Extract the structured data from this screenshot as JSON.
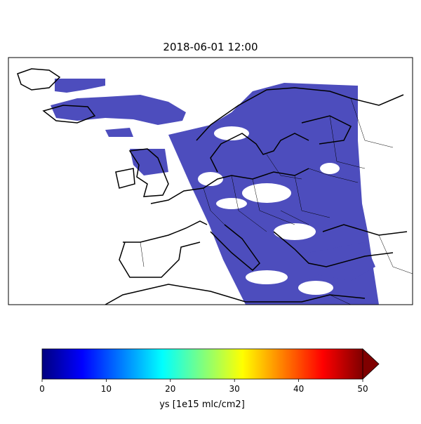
{
  "title": "2018-06-01 12:00",
  "colorbar": {
    "label": "ys [1e15 mlc/cm2]",
    "lim": [
      0,
      50
    ],
    "ticks": [
      0,
      10,
      20,
      30,
      40,
      50
    ],
    "colormap": "jet",
    "extend": "max"
  }
}
